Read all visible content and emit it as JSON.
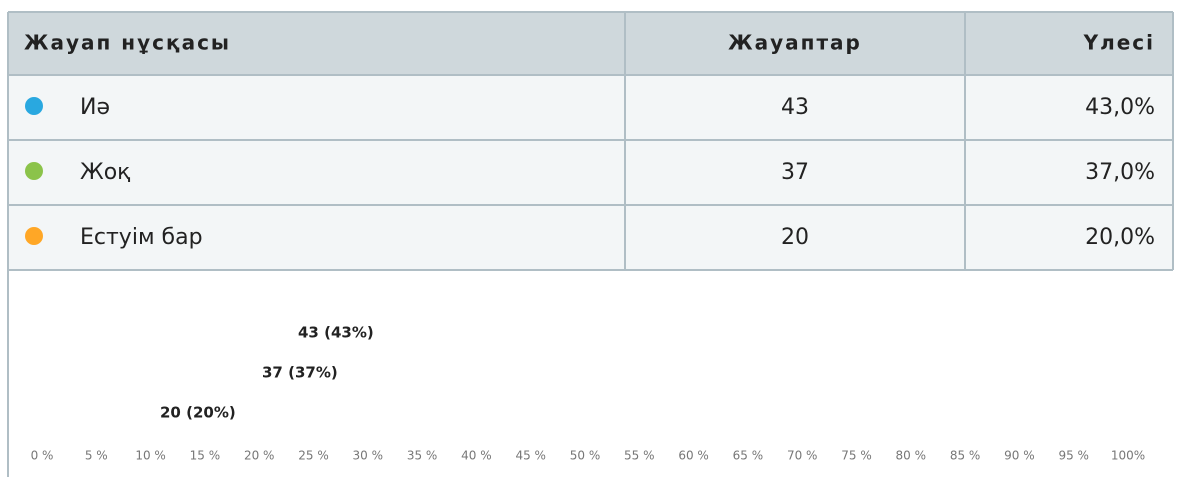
{
  "table": {
    "header": [
      "Жауап нұсқасы",
      "Жауаптар",
      "Үлесі"
    ],
    "rows": [
      [
        "Иә",
        "43",
        "43,0%"
      ],
      [
        "Жоқ",
        "37",
        "37,0%"
      ],
      [
        "Естуім бар",
        "20",
        "20,0%"
      ]
    ],
    "dot_colors": [
      "#29a8e0",
      "#8bc34a",
      "#ffa726"
    ]
  },
  "chart_data": {
    "type": "bar",
    "orientation": "horizontal",
    "values": [
      43,
      37,
      20
    ],
    "value_labels": [
      "43 (43%)",
      "37 (37%)",
      "20 (20%)"
    ],
    "xlim": [
      0,
      100
    ],
    "xticks": [
      {
        "value": 0,
        "label": "0 %"
      },
      {
        "value": 5,
        "label": "5 %"
      },
      {
        "value": 10,
        "label": "10 %"
      },
      {
        "value": 15,
        "label": "15 %"
      },
      {
        "value": 20,
        "label": "20 %"
      },
      {
        "value": 25,
        "label": "25 %"
      },
      {
        "value": 30,
        "label": "30 %"
      },
      {
        "value": 35,
        "label": "35 %"
      },
      {
        "value": 40,
        "label": "40 %"
      },
      {
        "value": 45,
        "label": "45 %"
      },
      {
        "value": 50,
        "label": "50 %"
      },
      {
        "value": 55,
        "label": "55 %"
      },
      {
        "value": 60,
        "label": "60 %"
      },
      {
        "value": 65,
        "label": "65 %"
      },
      {
        "value": 70,
        "label": "70 %"
      },
      {
        "value": 75,
        "label": "75 %"
      },
      {
        "value": 80,
        "label": "80 %"
      },
      {
        "value": 85,
        "label": "85 %"
      },
      {
        "value": 90,
        "label": "90 %"
      },
      {
        "value": 95,
        "label": "95 %"
      },
      {
        "value": 100,
        "label": "100%"
      }
    ]
  }
}
